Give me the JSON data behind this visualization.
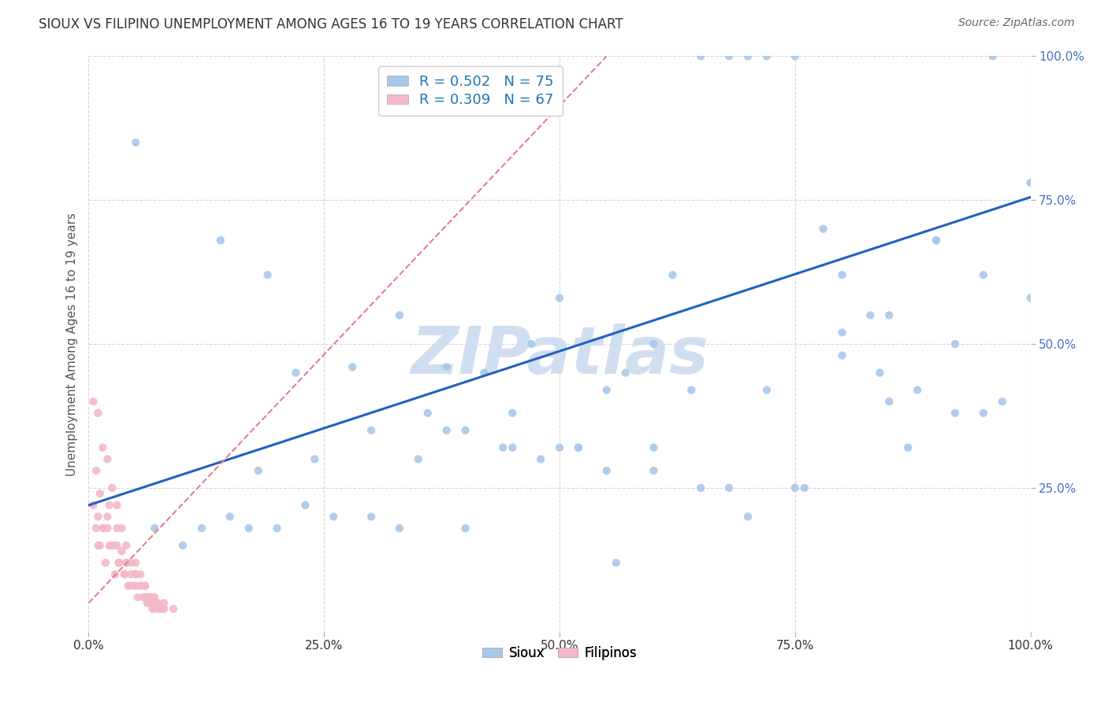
{
  "title": "SIOUX VS FILIPINO UNEMPLOYMENT AMONG AGES 16 TO 19 YEARS CORRELATION CHART",
  "source": "Source: ZipAtlas.com",
  "ylabel": "Unemployment Among Ages 16 to 19 years",
  "xlim": [
    0.0,
    1.0
  ],
  "ylim": [
    0.0,
    1.0
  ],
  "xtick_positions": [
    0.0,
    0.25,
    0.5,
    0.75,
    1.0
  ],
  "xtick_labels": [
    "0.0%",
    "25.0%",
    "50.0%",
    "75.0%",
    "100.0%"
  ],
  "ytick_positions": [
    0.25,
    0.5,
    0.75,
    1.0
  ],
  "ytick_labels": [
    "25.0%",
    "50.0%",
    "75.0%",
    "100.0%"
  ],
  "sioux_R": "0.502",
  "sioux_N": "75",
  "filipino_R": "0.309",
  "filipino_N": "67",
  "sioux_color": "#a8c8e8",
  "filipino_color": "#f4b8c8",
  "sioux_line_color": "#2060c0",
  "filipino_line_color": "#e08090",
  "watermark": "ZIPatlas",
  "watermark_color": "#d0dff0",
  "legend_sioux_label": "Sioux",
  "legend_filipino_label": "Filipinos",
  "sioux_line_x0": 0.0,
  "sioux_line_y0": 0.22,
  "sioux_line_x1": 1.0,
  "sioux_line_y1": 0.755,
  "filipino_line_x0": 0.0,
  "filipino_line_y0": 0.05,
  "filipino_line_x1": 0.55,
  "filipino_line_y1": 1.0,
  "sioux_scatter_x": [
    0.05,
    0.14,
    0.19,
    0.22,
    0.28,
    0.33,
    0.38,
    0.38,
    0.42,
    0.45,
    0.47,
    0.5,
    0.52,
    0.55,
    0.57,
    0.6,
    0.62,
    0.65,
    0.68,
    0.7,
    0.72,
    0.75,
    0.78,
    0.8,
    0.83,
    0.85,
    0.87,
    0.9,
    0.92,
    0.95,
    0.97,
    1.0,
    0.07,
    0.1,
    0.15,
    0.17,
    0.2,
    0.23,
    0.26,
    0.3,
    0.33,
    0.36,
    0.4,
    0.44,
    0.48,
    0.52,
    0.56,
    0.6,
    0.64,
    0.68,
    0.72,
    0.76,
    0.8,
    0.84,
    0.88,
    0.92,
    0.96,
    0.12,
    0.18,
    0.24,
    0.3,
    0.35,
    0.4,
    0.45,
    0.5,
    0.55,
    0.6,
    0.65,
    0.7,
    0.75,
    0.8,
    0.85,
    0.9,
    0.95,
    1.0
  ],
  "sioux_scatter_y": [
    0.85,
    0.68,
    0.62,
    0.45,
    0.46,
    0.55,
    0.35,
    0.46,
    0.45,
    0.32,
    0.5,
    0.58,
    0.32,
    0.42,
    0.45,
    0.5,
    0.62,
    1.0,
    1.0,
    1.0,
    1.0,
    1.0,
    0.7,
    0.62,
    0.55,
    0.55,
    0.32,
    0.68,
    0.5,
    0.62,
    0.4,
    0.58,
    0.18,
    0.15,
    0.2,
    0.18,
    0.18,
    0.22,
    0.2,
    0.2,
    0.18,
    0.38,
    0.18,
    0.32,
    0.3,
    0.32,
    0.12,
    0.28,
    0.42,
    0.25,
    0.42,
    0.25,
    0.48,
    0.45,
    0.42,
    0.38,
    1.0,
    0.18,
    0.28,
    0.3,
    0.35,
    0.3,
    0.35,
    0.38,
    0.32,
    0.28,
    0.32,
    0.25,
    0.2,
    0.25,
    0.52,
    0.4,
    0.68,
    0.38,
    0.78
  ],
  "filipino_scatter_x": [
    0.005,
    0.008,
    0.01,
    0.012,
    0.015,
    0.018,
    0.02,
    0.022,
    0.025,
    0.028,
    0.03,
    0.032,
    0.035,
    0.038,
    0.04,
    0.042,
    0.045,
    0.048,
    0.05,
    0.052,
    0.055,
    0.058,
    0.06,
    0.062,
    0.065,
    0.068,
    0.07,
    0.072,
    0.075,
    0.078,
    0.008,
    0.012,
    0.016,
    0.022,
    0.026,
    0.032,
    0.038,
    0.044,
    0.05,
    0.056,
    0.062,
    0.068,
    0.074,
    0.08,
    0.005,
    0.01,
    0.015,
    0.02,
    0.025,
    0.03,
    0.035,
    0.04,
    0.045,
    0.05,
    0.055,
    0.06,
    0.065,
    0.07,
    0.01,
    0.02,
    0.03,
    0.04,
    0.05,
    0.06,
    0.07,
    0.08,
    0.09
  ],
  "filipino_scatter_y": [
    0.22,
    0.18,
    0.2,
    0.15,
    0.18,
    0.12,
    0.2,
    0.15,
    0.15,
    0.1,
    0.18,
    0.12,
    0.14,
    0.1,
    0.12,
    0.08,
    0.1,
    0.08,
    0.08,
    0.06,
    0.08,
    0.06,
    0.06,
    0.05,
    0.05,
    0.04,
    0.04,
    0.05,
    0.04,
    0.04,
    0.28,
    0.24,
    0.18,
    0.22,
    0.15,
    0.12,
    0.1,
    0.08,
    0.1,
    0.08,
    0.06,
    0.06,
    0.05,
    0.04,
    0.4,
    0.38,
    0.32,
    0.3,
    0.25,
    0.22,
    0.18,
    0.15,
    0.12,
    0.12,
    0.1,
    0.08,
    0.06,
    0.05,
    0.15,
    0.18,
    0.15,
    0.12,
    0.1,
    0.08,
    0.06,
    0.05,
    0.04
  ]
}
